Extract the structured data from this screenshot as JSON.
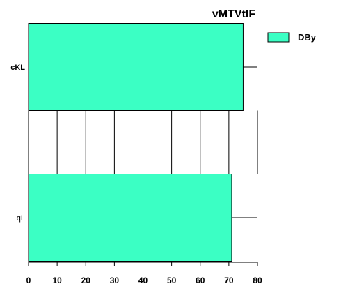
{
  "chart_data": {
    "type": "bar",
    "orientation": "horizontal",
    "title": "vMTVtIF",
    "categories": [
      "cKL",
      "qL"
    ],
    "category_bold": [
      true,
      false
    ],
    "series": [
      {
        "name": "DBy",
        "values": [
          75,
          71
        ],
        "color": "#3bffc4"
      }
    ],
    "error_bars": [
      80,
      80
    ],
    "xlim": [
      0,
      80
    ],
    "xticks": [
      0,
      10,
      20,
      30,
      40,
      50,
      60,
      70,
      80
    ],
    "grid": "vertical",
    "legend_position": "top-right"
  }
}
